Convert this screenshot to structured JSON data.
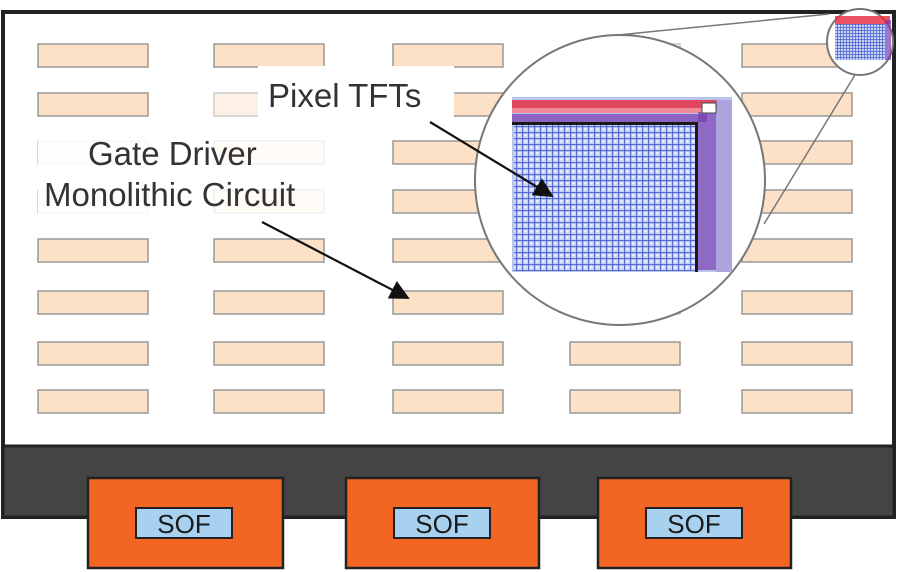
{
  "labels": {
    "pixel_tfts": "Pixel TFTs",
    "gate_driver_line1": "Gate Driver",
    "gate_driver_line2": "Monolithic Circuit"
  },
  "sof_labels": [
    "SOF",
    "SOF",
    "SOF"
  ],
  "gate_block_rows": 8,
  "gate_block_columns": 5,
  "colors": {
    "panel_border": "#222222",
    "panel_fill": "#ffffff",
    "bottom_bar": "#444444",
    "block_fill": "#fde1c6",
    "block_stroke": "#999999",
    "block_faded_fill": "#fdf1e6",
    "sof_package": "#f26522",
    "sof_label_bg": "#a8d1f0",
    "tft_grid": "#3a50c8",
    "tft_grid_bg": "#c8d4f4",
    "tft_red": "#e8283c",
    "tft_purple": "#7a3ab0",
    "lens_stroke": "#777777",
    "arrow": "#111111"
  }
}
